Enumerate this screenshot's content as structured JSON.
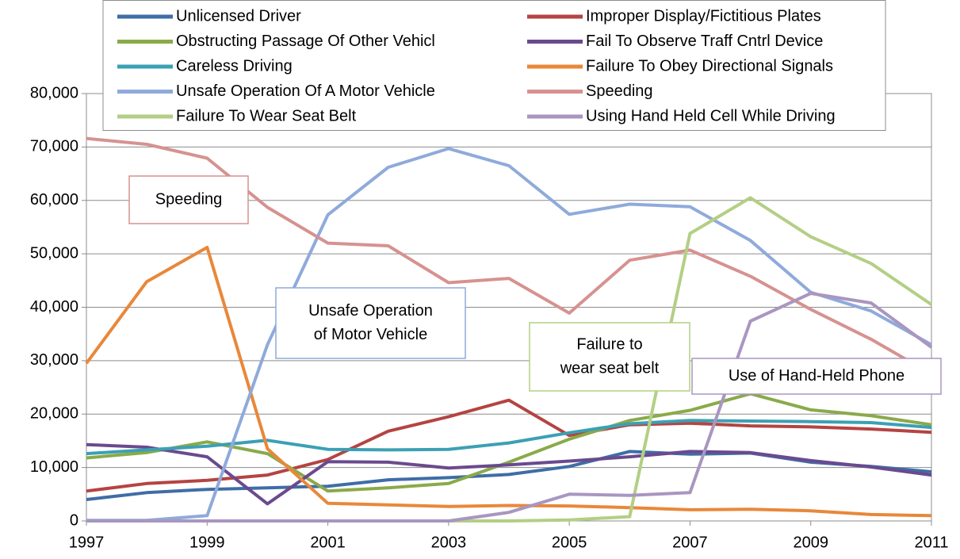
{
  "chart_data": {
    "type": "line",
    "x": [
      1997,
      1998,
      1999,
      2000,
      2001,
      2002,
      2003,
      2004,
      2005,
      2006,
      2007,
      2008,
      2009,
      2010,
      2011
    ],
    "xlim": [
      1997,
      2011
    ],
    "xticks": [
      1997,
      1999,
      2001,
      2003,
      2005,
      2007,
      2009,
      2011
    ],
    "ylim": [
      0,
      80000
    ],
    "yticks": [
      0,
      {
        "value": 10000,
        "label": "10,000"
      },
      {
        "value": 20000,
        "label": "20,000"
      },
      {
        "value": 30000,
        "label": "30,000"
      },
      {
        "value": 40000,
        "label": "40,000"
      },
      {
        "value": 50000,
        "label": "50,000"
      },
      {
        "value": 60000,
        "label": "60,000"
      },
      {
        "value": 70000,
        "label": "70,000"
      },
      {
        "value": 80000,
        "label": "80,000"
      }
    ],
    "grid": true,
    "legend": "top",
    "series": [
      {
        "name": "Unlicensed Driver",
        "color": "#3F6DA6",
        "values": [
          4000,
          5300,
          5900,
          6200,
          6500,
          7700,
          8100,
          8700,
          10200,
          13000,
          12500,
          12700,
          11000,
          10200,
          9200
        ]
      },
      {
        "name": "Improper Display/Fictitious Plates",
        "color": "#B44442",
        "values": [
          5600,
          7000,
          7600,
          8600,
          11500,
          16800,
          19500,
          22600,
          16000,
          18000,
          18300,
          17800,
          17600,
          17200,
          16600
        ]
      },
      {
        "name": "Obstructing Passage Of Other Vehicl",
        "color": "#8AAA4A",
        "values": [
          11800,
          12800,
          14800,
          12600,
          5600,
          6200,
          7000,
          11000,
          15300,
          18800,
          20700,
          23800,
          20800,
          19700,
          18000
        ]
      },
      {
        "name": "Fail To Observe Traff Cntrl Device",
        "color": "#6A4A8E",
        "values": [
          14300,
          13800,
          12000,
          3200,
          11100,
          11000,
          9900,
          10500,
          11200,
          12000,
          13000,
          12800,
          11300,
          10100,
          8600
        ]
      },
      {
        "name": "Careless Driving",
        "color": "#3CA0B4",
        "values": [
          12600,
          13300,
          14000,
          15100,
          13400,
          13300,
          13400,
          14600,
          16500,
          18200,
          18800,
          18700,
          18600,
          18400,
          17500
        ]
      },
      {
        "name": "Failure To Obey Directional Signals",
        "color": "#E8883A",
        "values": [
          29500,
          44800,
          51200,
          13500,
          3300,
          3000,
          2700,
          2900,
          2800,
          2500,
          2100,
          2200,
          1900,
          1200,
          1000
        ]
      },
      {
        "name": "Unsafe Operation Of A Motor Vehicle",
        "color": "#8FAADB",
        "values": [
          100,
          100,
          1000,
          33000,
          57300,
          66200,
          69700,
          66500,
          57400,
          59300,
          58800,
          52500,
          42800,
          39300,
          33000
        ]
      },
      {
        "name": "Speeding",
        "color": "#D69290",
        "values": [
          71600,
          70500,
          67900,
          58700,
          52000,
          51500,
          44600,
          45400,
          38900,
          48800,
          50700,
          45800,
          39600,
          34000,
          27500
        ]
      },
      {
        "name": "Failure To Wear Seat Belt",
        "color": "#B3CF84",
        "values": [
          null,
          null,
          null,
          null,
          null,
          null,
          0,
          0,
          200,
          800,
          53800,
          60500,
          53200,
          48200,
          40500
        ]
      },
      {
        "name": "Using Hand Held Cell While Driving",
        "color": "#A996C0",
        "values": [
          0,
          0,
          0,
          0,
          0,
          0,
          0,
          1600,
          5000,
          4800,
          5300,
          37400,
          42600,
          40800,
          32500
        ]
      }
    ],
    "annotations": [
      {
        "lines": [
          "Speeding"
        ],
        "color": "#D69290"
      },
      {
        "lines": [
          "Unsafe Operation",
          "of Motor Vehicle"
        ],
        "color": "#8FAADB"
      },
      {
        "lines": [
          "Failure to",
          "wear seat belt"
        ],
        "color": "#B3CF84"
      },
      {
        "lines": [
          "Use of Hand-Held Phone"
        ],
        "color": "#A996C0"
      }
    ]
  }
}
